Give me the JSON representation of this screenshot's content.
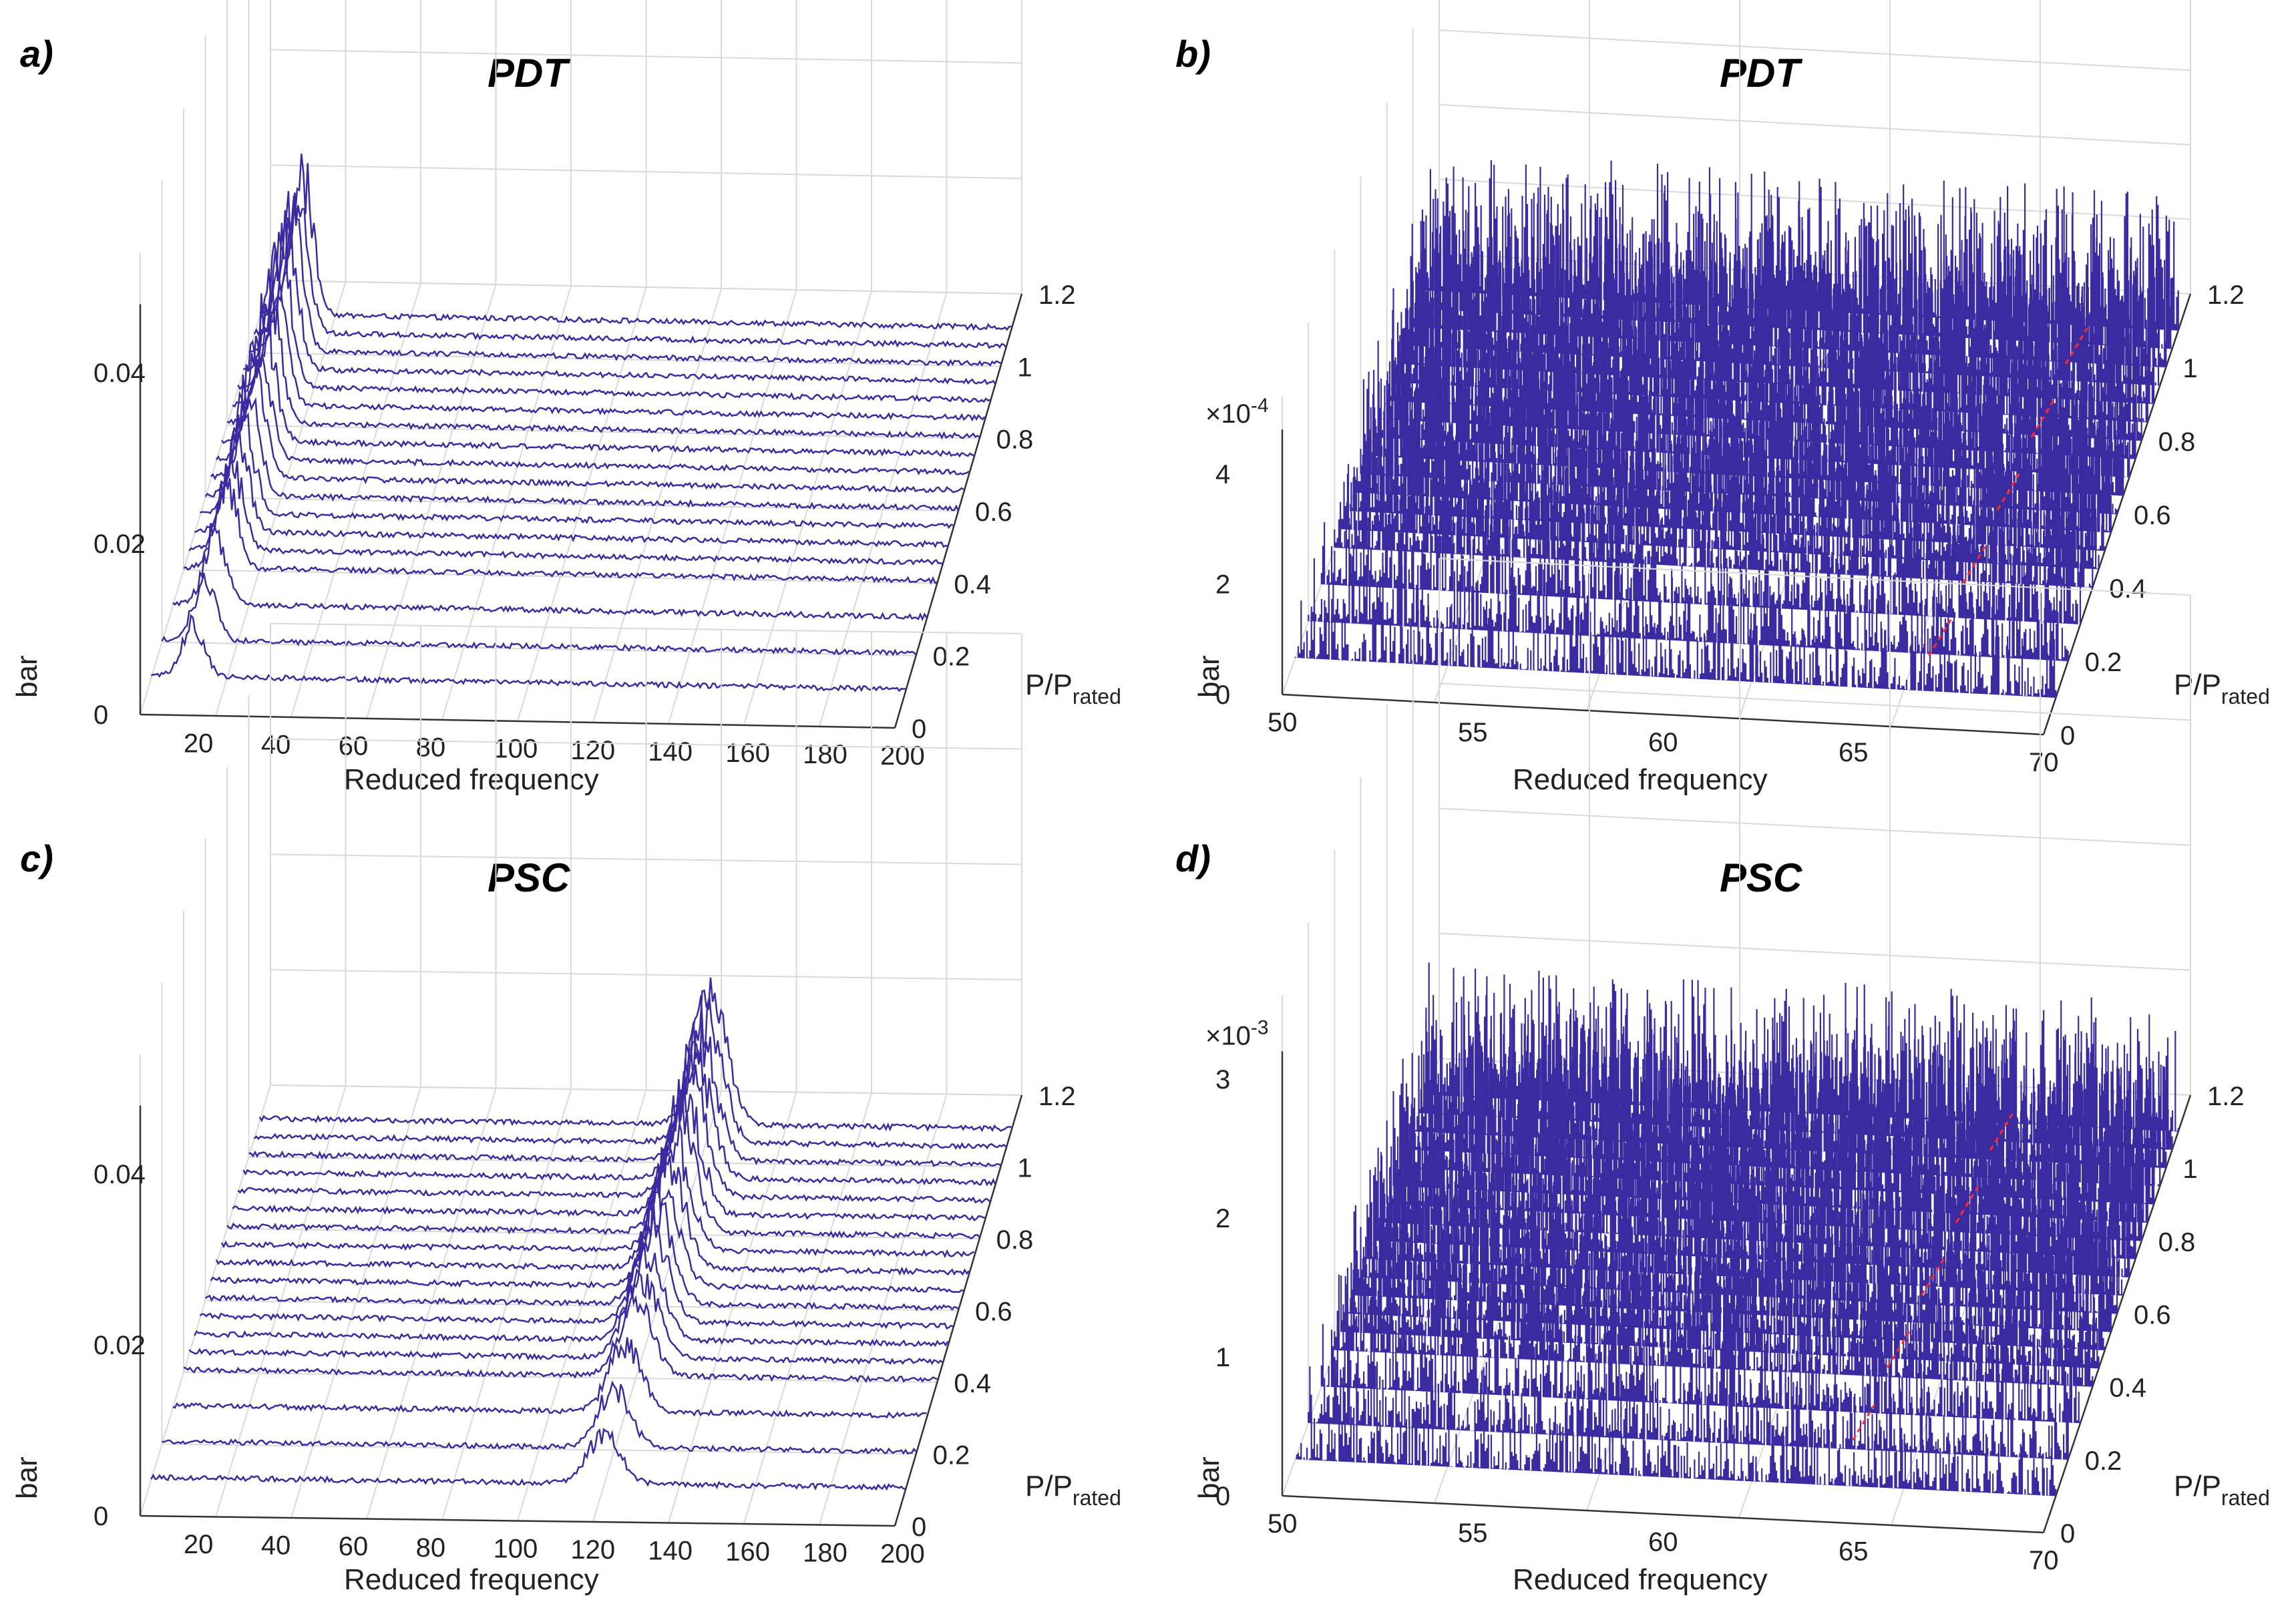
{
  "figure": {
    "colors": {
      "trace": "#3a2ca0",
      "red_dash": "#ff2a2a",
      "grid": "#d9d9d9",
      "axis": "#333333"
    },
    "labels": {
      "p_symbol": "P/P",
      "p_subscript": "rated"
    }
  },
  "chart_data": [
    {
      "panel": "a)",
      "type": "waterfall",
      "title": "PDT",
      "xlabel": "Reduced frequency",
      "ylabel": "bar",
      "zlabel": "P/Prated",
      "x_ticks": [
        "20",
        "40",
        "60",
        "80",
        "100",
        "120",
        "140",
        "160",
        "180",
        "200"
      ],
      "x_range": [
        5,
        200
      ],
      "z_ticks": [
        "0",
        "0.02",
        "0.04"
      ],
      "z_multiplier": "",
      "z_range": [
        0,
        0.06
      ],
      "p_ticks": [
        "0",
        "0.2",
        "0.4",
        "0.6",
        "0.8",
        "1",
        "1.2"
      ],
      "p_range": [
        0,
        1.2
      ],
      "power_levels": [
        0.1,
        0.2,
        0.3,
        0.4,
        0.45,
        0.5,
        0.55,
        0.6,
        0.65,
        0.7,
        0.75,
        0.8,
        0.85,
        0.9,
        0.95,
        1.0,
        1.05,
        1.1
      ],
      "peaks": [
        {
          "x": 16,
          "amplitude": 0.02,
          "width": 4
        }
      ],
      "noise_amplitude": 0.0006,
      "red_marker": false
    },
    {
      "panel": "b)",
      "type": "waterfall",
      "title": "PDT",
      "xlabel": "Reduced frequency",
      "ylabel": "bar",
      "zlabel": "P/Prated",
      "x_ticks": [
        "50",
        "55",
        "60",
        "65",
        "70"
      ],
      "x_range": [
        50,
        70
      ],
      "z_ticks": [
        "0",
        "2",
        "4"
      ],
      "z_multiplier": "×10",
      "z_exponent": "-4",
      "z_range": [
        0,
        6
      ],
      "p_ticks": [
        "0",
        "0.2",
        "0.4",
        "0.6",
        "0.8",
        "1",
        "1.2"
      ],
      "p_range": [
        0,
        1.2
      ],
      "power_levels": [
        0.1,
        0.2,
        0.3,
        0.4,
        0.45,
        0.5,
        0.55,
        0.6,
        0.65,
        0.7,
        0.75,
        0.8,
        0.85,
        0.9,
        0.95,
        1.0,
        1.05,
        1.1
      ],
      "peaks": [],
      "noise_amplitude": 2.4,
      "red_marker": true,
      "red_marker_x": 66.5
    },
    {
      "panel": "c)",
      "type": "waterfall",
      "title": "PSC",
      "xlabel": "Reduced frequency",
      "ylabel": "bar",
      "zlabel": "P/Prated",
      "x_ticks": [
        "20",
        "40",
        "60",
        "80",
        "100",
        "120",
        "140",
        "160",
        "180",
        "200"
      ],
      "x_range": [
        5,
        200
      ],
      "z_ticks": [
        "0",
        "0.02",
        "0.04"
      ],
      "z_multiplier": "",
      "z_range": [
        0,
        0.06
      ],
      "p_ticks": [
        "0",
        "0.2",
        "0.4",
        "0.6",
        "0.8",
        "1",
        "1.2"
      ],
      "p_range": [
        0,
        1.2
      ],
      "power_levels": [
        0.1,
        0.2,
        0.3,
        0.4,
        0.45,
        0.5,
        0.55,
        0.6,
        0.65,
        0.7,
        0.75,
        0.8,
        0.85,
        0.9,
        0.95,
        1.0,
        1.05,
        1.1
      ],
      "peaks": [
        {
          "x": 122,
          "amplitude": 0.018,
          "width": 6
        },
        {
          "x": 12,
          "amplitude": 0.03,
          "width": 0.4
        }
      ],
      "noise_amplitude": 0.0006,
      "red_marker": false
    },
    {
      "panel": "d)",
      "type": "waterfall",
      "title": "PSC",
      "xlabel": "Reduced frequency",
      "ylabel": "bar",
      "zlabel": "P/Prated",
      "x_ticks": [
        "50",
        "55",
        "60",
        "65",
        "70"
      ],
      "x_range": [
        50,
        70
      ],
      "z_ticks": [
        "0",
        "1",
        "2",
        "3"
      ],
      "z_multiplier": "×10",
      "z_exponent": "-3",
      "z_range": [
        0,
        4
      ],
      "p_ticks": [
        "0",
        "0.2",
        "0.4",
        "0.6",
        "0.8",
        "1",
        "1.2"
      ],
      "p_range": [
        0,
        1.2
      ],
      "power_levels": [
        0.1,
        0.2,
        0.3,
        0.4,
        0.45,
        0.5,
        0.55,
        0.6,
        0.65,
        0.7,
        0.75,
        0.8,
        0.85,
        0.9,
        0.95,
        1.0,
        1.05,
        1.1
      ],
      "peaks": [],
      "noise_amplitude": 0.9,
      "red_marker": true,
      "red_marker_x": 64.5
    }
  ]
}
